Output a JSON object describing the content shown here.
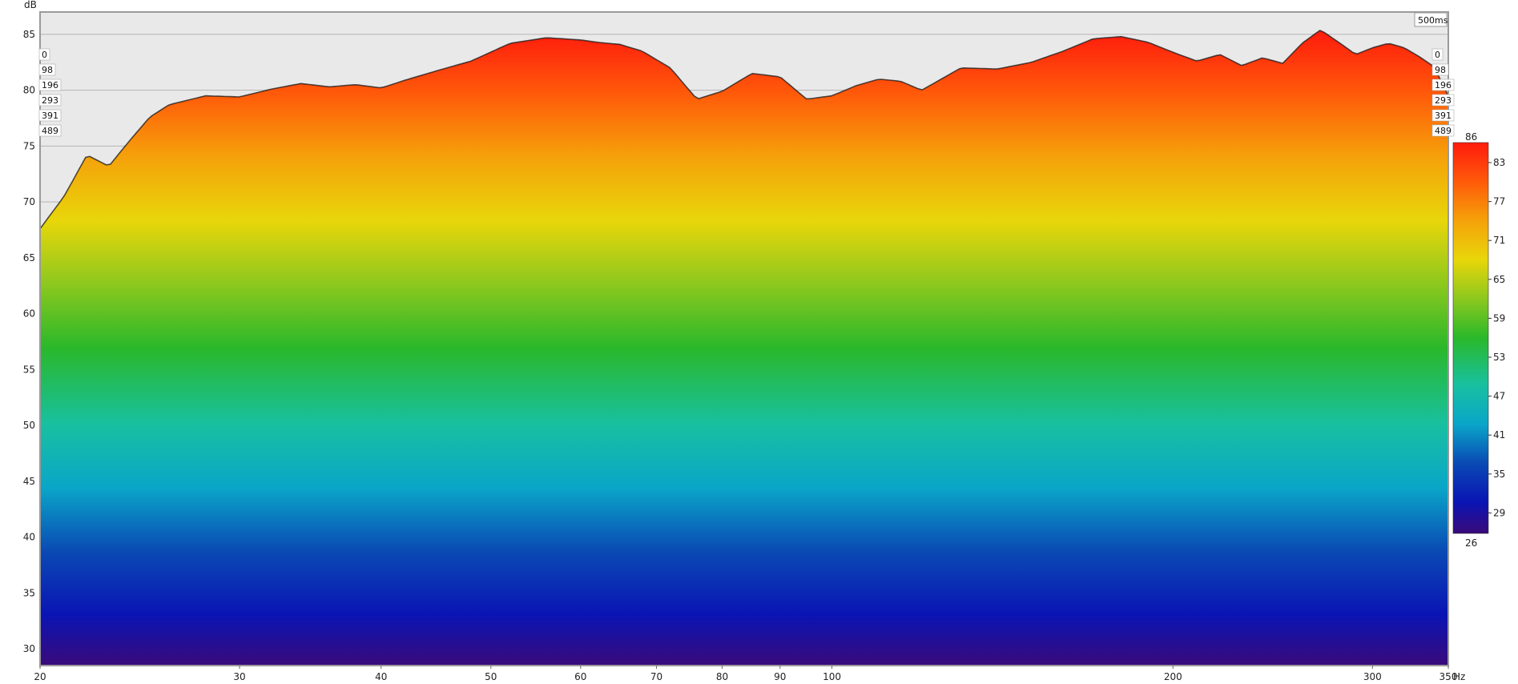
{
  "chart_data": {
    "type": "area",
    "subtype": "waterfall",
    "title": "",
    "xlabel": "",
    "ylabel": "",
    "y_unit": "dB",
    "x_unit": "Hz",
    "x_scale": "log",
    "xlim": [
      20,
      350
    ],
    "ylim": [
      28.5,
      87
    ],
    "x_tick_labels": [
      {
        "v": 20,
        "t": "20"
      },
      {
        "v": 30,
        "t": "30"
      },
      {
        "v": 40,
        "t": "40"
      },
      {
        "v": 50,
        "t": "50"
      },
      {
        "v": 60,
        "t": "60"
      },
      {
        "v": 70,
        "t": "70"
      },
      {
        "v": 80,
        "t": "80"
      },
      {
        "v": 90,
        "t": "90"
      },
      {
        "v": 100,
        "t": "100"
      },
      {
        "v": 200,
        "t": "200"
      },
      {
        "v": 300,
        "t": "300"
      },
      {
        "v": 350,
        "t": "350"
      }
    ],
    "y_tick_labels": [
      "30",
      "35",
      "40",
      "45",
      "50",
      "55",
      "60",
      "65",
      "70",
      "75",
      "80",
      "85"
    ],
    "time_window_label": "500ms",
    "slice_labels": [
      "0",
      "98",
      "196",
      "293",
      "391",
      "489"
    ],
    "colorbar": {
      "min_label": "26",
      "max_label": "86",
      "tick_labels": [
        "83",
        "77",
        "71",
        "65",
        "59",
        "53",
        "47",
        "41",
        "35",
        "29"
      ]
    },
    "front_response": {
      "name": "0 ms",
      "x": [
        20,
        21,
        22,
        23,
        24,
        25,
        26,
        28,
        30,
        32,
        34,
        36,
        38,
        40,
        42,
        45,
        48,
        52,
        56,
        60,
        62,
        65,
        68,
        72,
        76,
        80,
        85,
        90,
        95,
        100,
        105,
        110,
        115,
        120,
        130,
        140,
        150,
        160,
        170,
        180,
        190,
        200,
        210,
        220,
        230,
        240,
        250,
        260,
        270,
        280,
        290,
        300,
        310,
        320,
        330,
        340,
        350
      ],
      "y": [
        67.6,
        70.5,
        74.2,
        73.2,
        75.5,
        77.6,
        78.7,
        79.5,
        79.4,
        80.1,
        80.6,
        80.3,
        80.5,
        80.2,
        80.9,
        81.8,
        82.6,
        84.2,
        84.7,
        84.5,
        84.3,
        84.1,
        83.5,
        82.0,
        79.2,
        79.9,
        81.5,
        81.2,
        79.2,
        79.5,
        80.4,
        81.0,
        80.8,
        80.0,
        82.0,
        81.9,
        82.5,
        83.5,
        84.6,
        84.8,
        84.3,
        83.4,
        82.6,
        83.2,
        82.2,
        82.9,
        82.4,
        84.2,
        85.4,
        84.3,
        83.2,
        83.8,
        84.2,
        83.8,
        83.0,
        82.1,
        79.5
      ]
    }
  }
}
